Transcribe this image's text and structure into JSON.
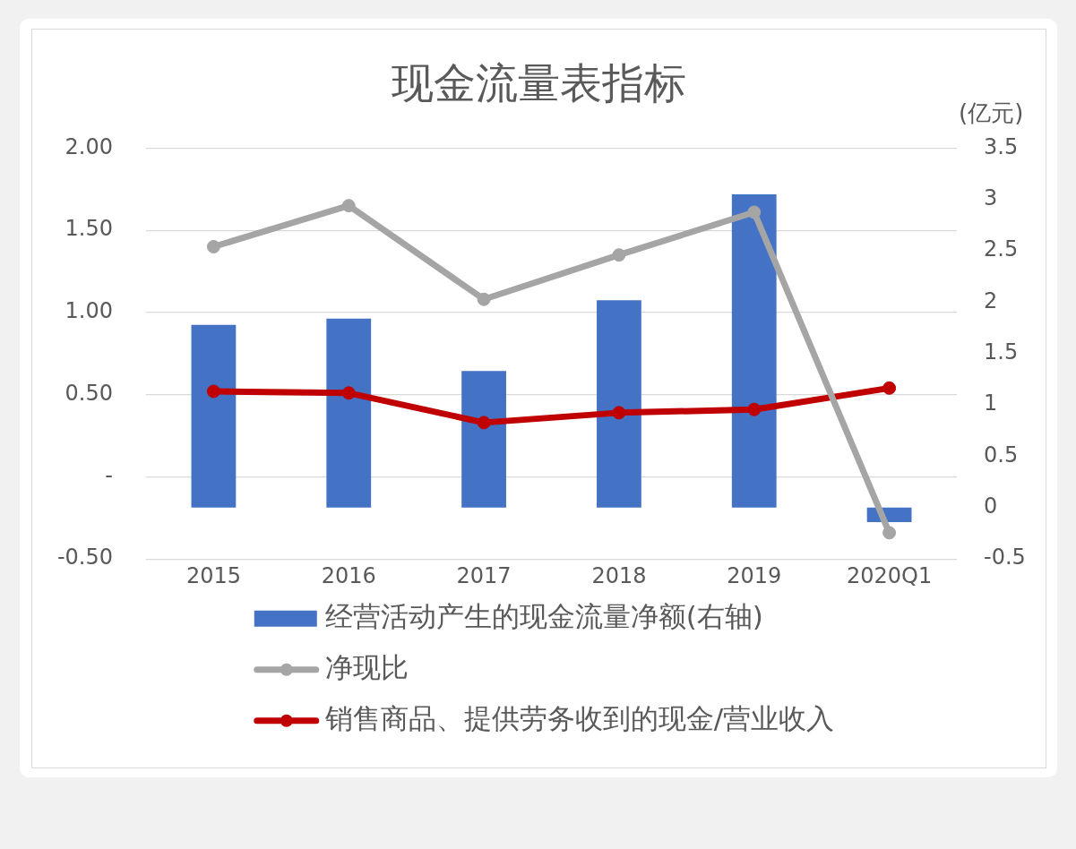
{
  "chart_data": {
    "type": "bar",
    "title": "现金流量表指标",
    "y2label": "(亿元)",
    "categories": [
      "2015",
      "2016",
      "2017",
      "2018",
      "2019",
      "2020Q1"
    ],
    "series": [
      {
        "name": "经营活动产生的现金流量净额(右轴)",
        "axis": "y2",
        "color": "#4472c4",
        "values": [
          1.78,
          1.84,
          1.33,
          2.02,
          3.05,
          -0.14
        ]
      },
      {
        "name": "净现比",
        "type": "line",
        "color": "#a5a5a5",
        "values": [
          1.4,
          1.65,
          1.08,
          1.35,
          1.61,
          -0.34
        ]
      },
      {
        "name": "销售商品、提供劳务收到的现金/营业收入",
        "type": "line",
        "color": "#c00000",
        "values": [
          0.52,
          0.51,
          0.33,
          0.39,
          0.41,
          0.54
        ]
      }
    ],
    "ylim": [
      -0.5,
      2
    ],
    "yticks": [
      {
        "value": -0.5,
        "label": "-0.50"
      },
      {
        "value": 0,
        "label": "-"
      },
      {
        "value": 0.5,
        "label": "0.50"
      },
      {
        "value": 1,
        "label": "1.00"
      },
      {
        "value": 1.5,
        "label": "1.50"
      },
      {
        "value": 2,
        "label": "2.00"
      }
    ],
    "y2lim": [
      -0.5,
      3.5
    ],
    "y2ticks": [
      -0.5,
      0,
      0.5,
      1,
      1.5,
      2,
      2.5,
      3,
      3.5
    ],
    "grid": "y",
    "legend": "bottom",
    "marker": "circle"
  }
}
